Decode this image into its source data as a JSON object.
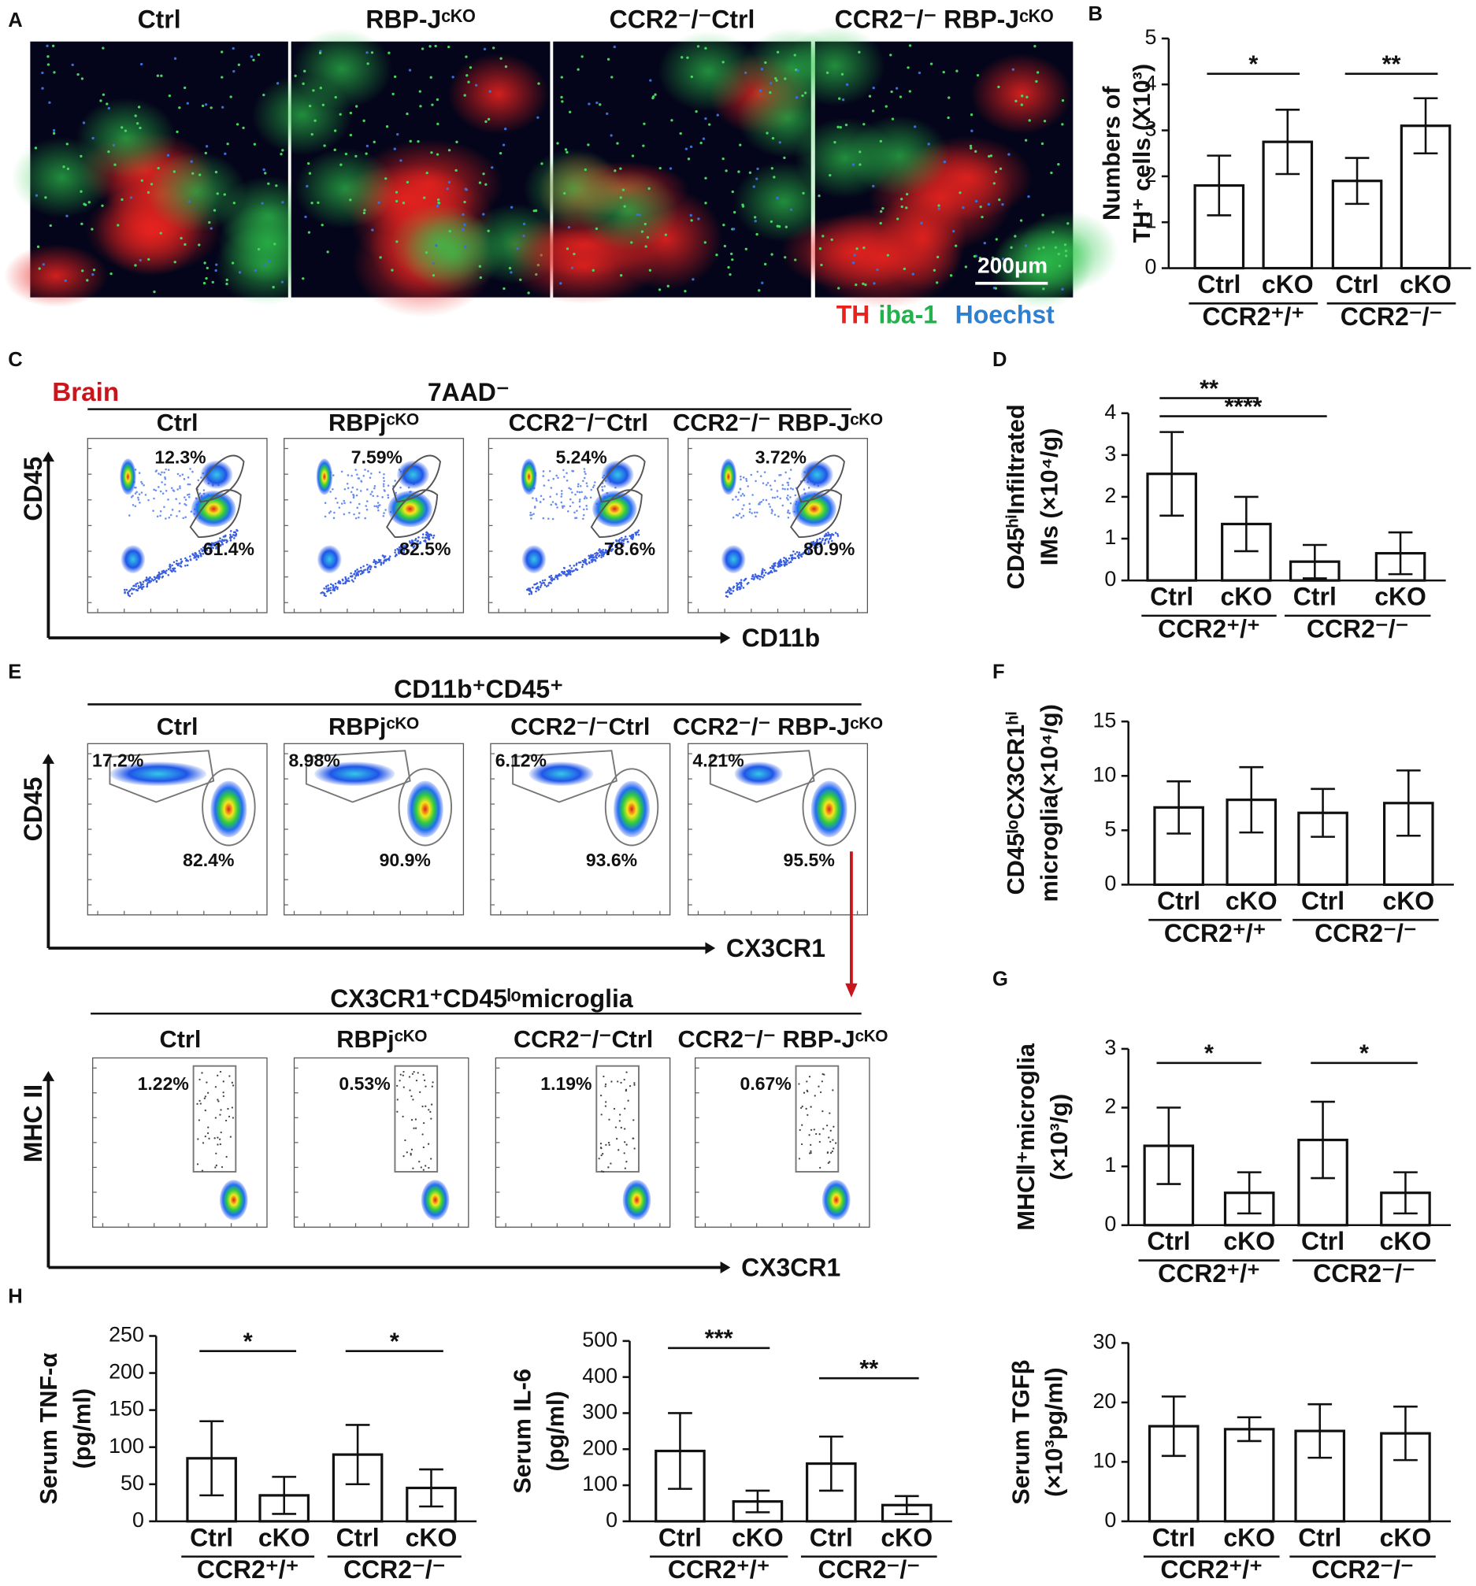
{
  "panel_labels": [
    "A",
    "B",
    "C",
    "D",
    "E",
    "F",
    "G",
    "H"
  ],
  "image_panel": {
    "titles": [
      "Ctrl",
      "RBP-Jᶜᴷᴼ",
      "CCR2⁻/⁻Ctrl",
      "CCR2⁻/⁻ RBP-Jᶜᴷᴼ"
    ],
    "scale_bar": "200μm",
    "legend": [
      "TH",
      "iba-1",
      "Hoechst"
    ],
    "legend_colors": [
      "#e8231f",
      "#22b24c",
      "#2f7fd0"
    ]
  },
  "flow_c": {
    "tissue": "Brain",
    "gate": "7AAD⁻",
    "titles": [
      "Ctrl",
      "RBPjᶜᴷᴼ",
      "CCR2⁻/⁻Ctrl",
      "CCR2⁻/⁻ RBP-Jᶜᴷᴼ"
    ],
    "upper": [
      "12.3%",
      "7.59%",
      "5.24%",
      "3.72%"
    ],
    "lower": [
      "61.4%",
      "82.5%",
      "78.6%",
      "80.9%"
    ],
    "y_axis": "CD45",
    "x_axis": "CD11b"
  },
  "flow_e": {
    "gate": "CD11b⁺CD45⁺",
    "titles": [
      "Ctrl",
      "RBPjᶜᴷᴼ",
      "CCR2⁻/⁻Ctrl",
      "CCR2⁻/⁻ RBP-Jᶜᴷᴼ"
    ],
    "upper": [
      "17.2%",
      "8.98%",
      "6.12%",
      "4.21%"
    ],
    "lower": [
      "82.4%",
      "90.9%",
      "93.6%",
      "95.5%"
    ],
    "y_axis": "CD45",
    "x_axis": "CX3CR1"
  },
  "flow_e2": {
    "gate": "CX3CR1⁺CD45ˡᵒmicroglia",
    "titles": [
      "Ctrl",
      "RBPjᶜᴷᴼ",
      "CCR2⁻/⁻Ctrl",
      "CCR2⁻/⁻ RBP-Jᶜᴷᴼ"
    ],
    "upper": [
      "1.22%",
      "0.53%",
      "1.19%",
      "0.67%"
    ],
    "y_axis": "MHC II",
    "x_axis": "CX3CR1"
  },
  "chart_data": [
    {
      "type": "bar",
      "ylabel": [
        "Numbers of",
        "TH⁺ cells (X10³)"
      ],
      "categories": [
        "Ctrl",
        "cKO",
        "Ctrl",
        "cKO"
      ],
      "groups": [
        "CCR2⁺/⁺",
        "CCR2⁻/⁻"
      ],
      "values": [
        1.8,
        2.75,
        1.9,
        3.1
      ],
      "errors": [
        0.65,
        0.7,
        0.5,
        0.6
      ],
      "color": "#ffffff",
      "ylim": [
        0,
        5
      ],
      "yticks": [
        0,
        1,
        2,
        3,
        4,
        5
      ],
      "annotations": [
        "*",
        "**"
      ]
    },
    {
      "type": "bar",
      "ylabel": [
        "CD45ʰⁱInfiltrated",
        "IMs (×10⁴/g)"
      ],
      "categories": [
        "Ctrl",
        "cKO",
        "Ctrl",
        "cKO"
      ],
      "groups": [
        "CCR2⁺/⁺",
        "CCR2⁻/⁻"
      ],
      "values": [
        2.55,
        1.35,
        0.45,
        0.65
      ],
      "errors": [
        1.0,
        0.65,
        0.4,
        0.5
      ],
      "color": "#ffffff",
      "ylim": [
        0,
        4
      ],
      "yticks": [
        0,
        1,
        2,
        3,
        4
      ],
      "annotations": [
        "**",
        "****"
      ]
    },
    {
      "type": "bar",
      "ylabel": [
        "CD45ˡᵒCX3CR1ʰⁱ",
        "microglia(×10⁴/g)"
      ],
      "categories": [
        "Ctrl",
        "cKO",
        "Ctrl",
        "cKO"
      ],
      "groups": [
        "CCR2⁺/⁺",
        "CCR2⁻/⁻"
      ],
      "values": [
        7.1,
        7.8,
        6.6,
        7.5
      ],
      "errors": [
        2.4,
        3,
        2.2,
        3
      ],
      "color": "#ffffff",
      "ylim": [
        0,
        15
      ],
      "yticks": [
        0,
        5,
        10,
        15
      ],
      "annotations": []
    },
    {
      "type": "bar",
      "ylabel": [
        "MHCⅡ⁺microglia",
        "(×10³/g)"
      ],
      "categories": [
        "Ctrl",
        "cKO",
        "Ctrl",
        "cKO"
      ],
      "groups": [
        "CCR2⁺/⁺",
        "CCR2⁻/⁻"
      ],
      "values": [
        1.35,
        0.55,
        1.45,
        0.55
      ],
      "errors": [
        0.65,
        0.35,
        0.65,
        0.35
      ],
      "color": "#ffffff",
      "ylim": [
        0,
        3
      ],
      "yticks": [
        0,
        1,
        2,
        3
      ],
      "annotations": [
        "*",
        "*"
      ]
    },
    {
      "type": "bar",
      "ylabel": [
        "Serum TNF-α",
        "(pg/ml)"
      ],
      "categories": [
        "Ctrl",
        "cKO",
        "Ctrl",
        "cKO"
      ],
      "groups": [
        "CCR2⁺/⁺",
        "CCR2⁻/⁻"
      ],
      "values": [
        85,
        35,
        90,
        45
      ],
      "errors": [
        50,
        25,
        40,
        25
      ],
      "color": "#ffffff",
      "ylim": [
        0,
        250
      ],
      "yticks": [
        0,
        50,
        100,
        150,
        200,
        250
      ],
      "annotations": [
        "*",
        "*"
      ]
    },
    {
      "type": "bar",
      "ylabel": [
        "Serum IL-6",
        "(pg/ml)"
      ],
      "categories": [
        "Ctrl",
        "cKO",
        "Ctrl",
        "cKO"
      ],
      "groups": [
        "CCR2⁺/⁺",
        "CCR2⁻/⁻"
      ],
      "values": [
        195,
        55,
        160,
        45
      ],
      "errors": [
        105,
        30,
        75,
        25
      ],
      "color": "#ffffff",
      "ylim": [
        0,
        500
      ],
      "yticks": [
        0,
        100,
        200,
        300,
        400,
        500
      ],
      "annotations": [
        "***",
        "**"
      ]
    },
    {
      "type": "bar",
      "ylabel": [
        "Serum TGFβ",
        "(×10³pg/ml)"
      ],
      "categories": [
        "Ctrl",
        "cKO",
        "Ctrl",
        "cKO"
      ],
      "groups": [
        "CCR2⁺/⁺",
        "CCR2⁻/⁻"
      ],
      "values": [
        16,
        15.5,
        15.2,
        14.8
      ],
      "errors": [
        5,
        2,
        4.5,
        4.5
      ],
      "color": "#ffffff",
      "ylim": [
        0,
        30
      ],
      "yticks": [
        0,
        10,
        20,
        30
      ],
      "annotations": []
    }
  ]
}
